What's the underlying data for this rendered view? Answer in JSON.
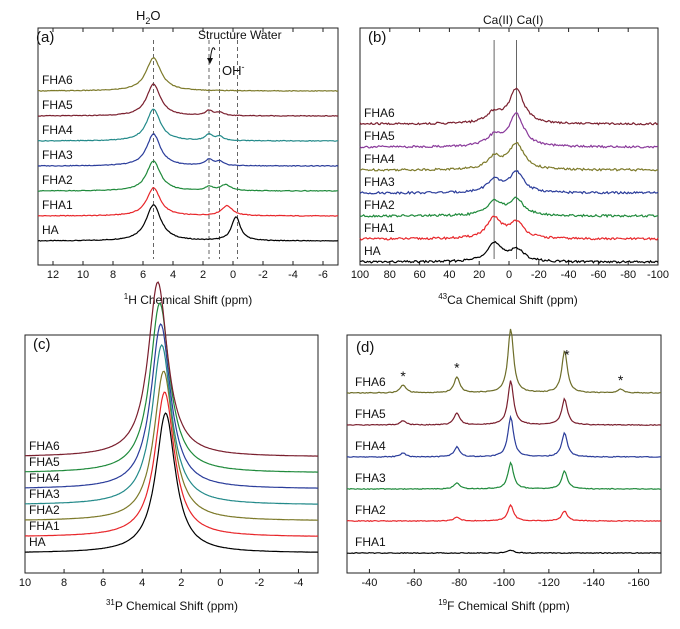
{
  "chart_data": [
    {
      "panel": "(a)",
      "type": "line",
      "xlabel_sup": "1",
      "xlabel": "H Chemical Shift (ppm)",
      "xlim": [
        13,
        -7
      ],
      "ticks": [
        "12",
        "10",
        "8",
        "6",
        "4",
        "2",
        "0",
        "-2",
        "-4",
        "-6"
      ],
      "annotations": {
        "h2o_main": "H",
        "h2o_sub": "2",
        "h2o_tail": "O",
        "structure_water": "Structure Water",
        "oh_main": "OH",
        "oh_sup": "-"
      },
      "guide_lines": [
        5.3,
        1.6,
        0.9,
        -0.3
      ],
      "series": [
        {
          "name": "HA",
          "color": "#000000",
          "peaks": [
            [
              5.3,
              36,
              0.6
            ],
            [
              -0.2,
              24,
              0.35
            ]
          ]
        },
        {
          "name": "FHA1",
          "color": "#e8262a",
          "peaks": [
            [
              5.3,
              28,
              0.55
            ],
            [
              0.4,
              10,
              0.45
            ]
          ]
        },
        {
          "name": "FHA2",
          "color": "#1f8a3b",
          "peaks": [
            [
              5.3,
              30,
              0.55
            ],
            [
              1.6,
              4,
              0.3
            ],
            [
              0.5,
              6,
              0.4
            ]
          ]
        },
        {
          "name": "FHA3",
          "color": "#2b3d9b",
          "peaks": [
            [
              5.3,
              32,
              0.55
            ],
            [
              1.6,
              6,
              0.3
            ],
            [
              0.9,
              4,
              0.3
            ]
          ]
        },
        {
          "name": "FHA4",
          "color": "#238a8a",
          "peaks": [
            [
              5.3,
              32,
              0.55
            ],
            [
              1.6,
              6,
              0.3
            ],
            [
              0.9,
              4,
              0.3
            ]
          ]
        },
        {
          "name": "FHA5",
          "color": "#7a1f2e",
          "peaks": [
            [
              5.3,
              32,
              0.55
            ],
            [
              1.6,
              5,
              0.3
            ],
            [
              0.9,
              3,
              0.3
            ]
          ]
        },
        {
          "name": "FHA6",
          "color": "#7d7a2a",
          "peaks": [
            [
              5.3,
              33,
              0.6
            ]
          ]
        }
      ]
    },
    {
      "panel": "(b)",
      "type": "line",
      "xlabel_sup": "43",
      "xlabel": "Ca Chemical Shift  (ppm)",
      "xlim": [
        100,
        -100
      ],
      "ticks": [
        "100",
        "80",
        "60",
        "40",
        "20",
        "0",
        "-20",
        "-40",
        "-60",
        "-80",
        "-100"
      ],
      "annotations": {
        "ca2": "Ca(II)",
        "ca1": "Ca(I)"
      },
      "guide_lines": [
        10,
        -5
      ],
      "series": [
        {
          "name": "HA",
          "color": "#000000",
          "peaks": [
            [
              10,
              18,
              6
            ],
            [
              -5,
              12,
              6
            ]
          ]
        },
        {
          "name": "FHA1",
          "color": "#e8262a",
          "peaks": [
            [
              10,
              20,
              6
            ],
            [
              -5,
              16,
              6
            ]
          ]
        },
        {
          "name": "FHA2",
          "color": "#1f8a3b",
          "peaks": [
            [
              10,
              14,
              6
            ],
            [
              -5,
              16,
              6
            ]
          ]
        },
        {
          "name": "FHA3",
          "color": "#2b3d9b",
          "peaks": [
            [
              10,
              12,
              6
            ],
            [
              -5,
              20,
              6
            ]
          ]
        },
        {
          "name": "FHA4",
          "color": "#7d7a2a",
          "peaks": [
            [
              10,
              12,
              6
            ],
            [
              -5,
              26,
              6
            ]
          ]
        },
        {
          "name": "FHA5",
          "color": "#8a3a9b",
          "peaks": [
            [
              10,
              10,
              6
            ],
            [
              -5,
              32,
              6
            ]
          ]
        },
        {
          "name": "FHA6",
          "color": "#7a1f2e",
          "peaks": [
            [
              10,
              10,
              6
            ],
            [
              -5,
              34,
              6
            ]
          ]
        }
      ]
    },
    {
      "panel": "(c)",
      "type": "line",
      "xlabel_sup": "31",
      "xlabel": "P Chemical Shift (ppm)",
      "xlim": [
        10,
        -5
      ],
      "ticks": [
        "10",
        "8",
        "6",
        "4",
        "2",
        "0",
        "-2",
        "-4"
      ],
      "series": [
        {
          "name": "HA",
          "color": "#000000",
          "peaks": [
            [
              2.8,
              140,
              0.6
            ]
          ]
        },
        {
          "name": "FHA1",
          "color": "#e8262a",
          "peaks": [
            [
              2.85,
              145,
              0.6
            ]
          ]
        },
        {
          "name": "FHA2",
          "color": "#7d7a2a",
          "peaks": [
            [
              2.9,
              150,
              0.6
            ]
          ]
        },
        {
          "name": "FHA3",
          "color": "#238a8a",
          "peaks": [
            [
              3.0,
              160,
              0.6
            ]
          ]
        },
        {
          "name": "FHA4",
          "color": "#2b3d9b",
          "peaks": [
            [
              3.05,
              165,
              0.6
            ]
          ]
        },
        {
          "name": "FHA5",
          "color": "#1f8a3b",
          "peaks": [
            [
              3.1,
              170,
              0.6
            ]
          ]
        },
        {
          "name": "FHA6",
          "color": "#7a1f2e",
          "peaks": [
            [
              3.2,
              175,
              0.6
            ]
          ]
        }
      ]
    },
    {
      "panel": "(d)",
      "type": "line",
      "xlabel_sup": "19",
      "xlabel": "F Chemical Shift (ppm)",
      "xlim": [
        -30,
        -170
      ],
      "ticks": [
        "-40",
        "-60",
        "-80",
        "-100",
        "-120",
        "-140",
        "-160"
      ],
      "asterisk": "*",
      "sideband_positions": [
        -55,
        -79,
        -128,
        -152
      ],
      "series": [
        {
          "name": "FHA1",
          "color": "#000000",
          "peaks": [
            [
              -103,
              3,
              1.5
            ]
          ]
        },
        {
          "name": "FHA2",
          "color": "#e8262a",
          "peaks": [
            [
              -103,
              16,
              1.5
            ],
            [
              -127,
              10,
              1.5
            ],
            [
              -79,
              4,
              1.5
            ]
          ]
        },
        {
          "name": "FHA3",
          "color": "#1f8a3b",
          "peaks": [
            [
              -103,
              26,
              1.5
            ],
            [
              -127,
              18,
              1.5
            ],
            [
              -79,
              6,
              1.5
            ]
          ]
        },
        {
          "name": "FHA4",
          "color": "#2b3d9b",
          "peaks": [
            [
              -103,
              40,
              1.5
            ],
            [
              -127,
              24,
              1.5
            ],
            [
              -79,
              10,
              1.5
            ],
            [
              -55,
              4,
              1.5
            ]
          ]
        },
        {
          "name": "FHA5",
          "color": "#7a1f2e",
          "peaks": [
            [
              -103,
              44,
              1.5
            ],
            [
              -127,
              26,
              1.5
            ],
            [
              -79,
              12,
              1.5
            ],
            [
              -55,
              4,
              1.5
            ]
          ]
        },
        {
          "name": "FHA6",
          "color": "#6e6e2a",
          "peaks": [
            [
              -103,
              64,
              1.5
            ],
            [
              -127,
              42,
              1.5
            ],
            [
              -79,
              16,
              1.5
            ],
            [
              -55,
              8,
              1.5
            ],
            [
              -152,
              4,
              1.5
            ]
          ]
        }
      ]
    }
  ]
}
